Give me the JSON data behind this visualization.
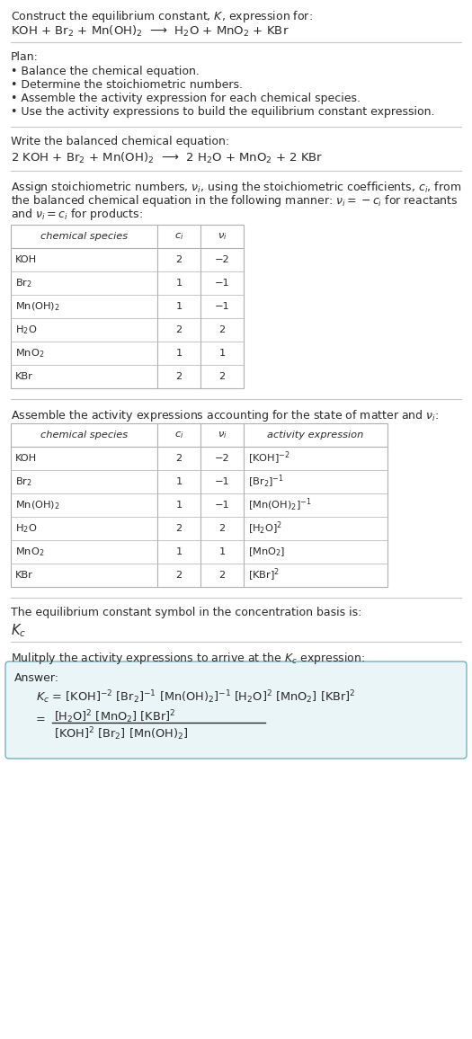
{
  "title_line1": "Construct the equilibrium constant, $K$, expression for:",
  "title_line2": "KOH + Br$_2$ + Mn(OH)$_2$  ⟶  H$_2$O + MnO$_2$ + KBr",
  "plan_header": "Plan:",
  "plan_bullets": [
    "• Balance the chemical equation.",
    "• Determine the stoichiometric numbers.",
    "• Assemble the activity expression for each chemical species.",
    "• Use the activity expressions to build the equilibrium constant expression."
  ],
  "balanced_eq_header": "Write the balanced chemical equation:",
  "balanced_eq": "2 KOH + Br$_2$ + Mn(OH)$_2$  ⟶  2 H$_2$O + MnO$_2$ + 2 KBr",
  "stoich_header_lines": [
    "Assign stoichiometric numbers, $\\nu_i$, using the stoichiometric coefficients, $c_i$, from",
    "the balanced chemical equation in the following manner: $\\nu_i = -c_i$ for reactants",
    "and $\\nu_i = c_i$ for products:"
  ],
  "table1_headers": [
    "chemical species",
    "$c_i$",
    "$\\nu_i$"
  ],
  "table1_data": [
    [
      "KOH",
      "2",
      "−2"
    ],
    [
      "Br$_2$",
      "1",
      "−1"
    ],
    [
      "Mn(OH)$_2$",
      "1",
      "−1"
    ],
    [
      "H$_2$O",
      "2",
      "2"
    ],
    [
      "MnO$_2$",
      "1",
      "1"
    ],
    [
      "KBr",
      "2",
      "2"
    ]
  ],
  "activity_header": "Assemble the activity expressions accounting for the state of matter and $\\nu_i$:",
  "table2_headers": [
    "chemical species",
    "$c_i$",
    "$\\nu_i$",
    "activity expression"
  ],
  "table2_data": [
    [
      "KOH",
      "2",
      "−2",
      "[KOH]$^{-2}$"
    ],
    [
      "Br$_2$",
      "1",
      "−1",
      "[Br$_2$]$^{-1}$"
    ],
    [
      "Mn(OH)$_2$",
      "1",
      "−1",
      "[Mn(OH)$_2$]$^{-1}$"
    ],
    [
      "H$_2$O",
      "2",
      "2",
      "[H$_2$O]$^2$"
    ],
    [
      "MnO$_2$",
      "1",
      "1",
      "[MnO$_2$]"
    ],
    [
      "KBr",
      "2",
      "2",
      "[KBr]$^2$"
    ]
  ],
  "kc_header": "The equilibrium constant symbol in the concentration basis is:",
  "kc_symbol": "$K_c$",
  "multiply_header": "Mulitply the activity expressions to arrive at the $K_c$ expression:",
  "answer_label": "Answer:",
  "answer_line1": "$K_c$ = [KOH]$^{-2}$ [Br$_2$]$^{-1}$ [Mn(OH)$_2$]$^{-1}$ [H$_2$O]$^2$ [MnO$_2$] [KBr]$^2$",
  "answer_eq_sign": "=",
  "answer_num": "[H$_2$O]$^2$ [MnO$_2$] [KBr]$^2$",
  "answer_den": "[KOH]$^2$ [Br$_2$] [Mn(OH)$_2$]",
  "bg_color": "#ffffff",
  "text_color": "#2a2a2a",
  "table_border_color": "#b0b0b0",
  "answer_box_facecolor": "#eaf5f8",
  "answer_box_edgecolor": "#7ab0be",
  "sep_line_color": "#c8c8c8",
  "fs": 9.0,
  "fs_small": 8.2,
  "fs_eq": 10.0
}
